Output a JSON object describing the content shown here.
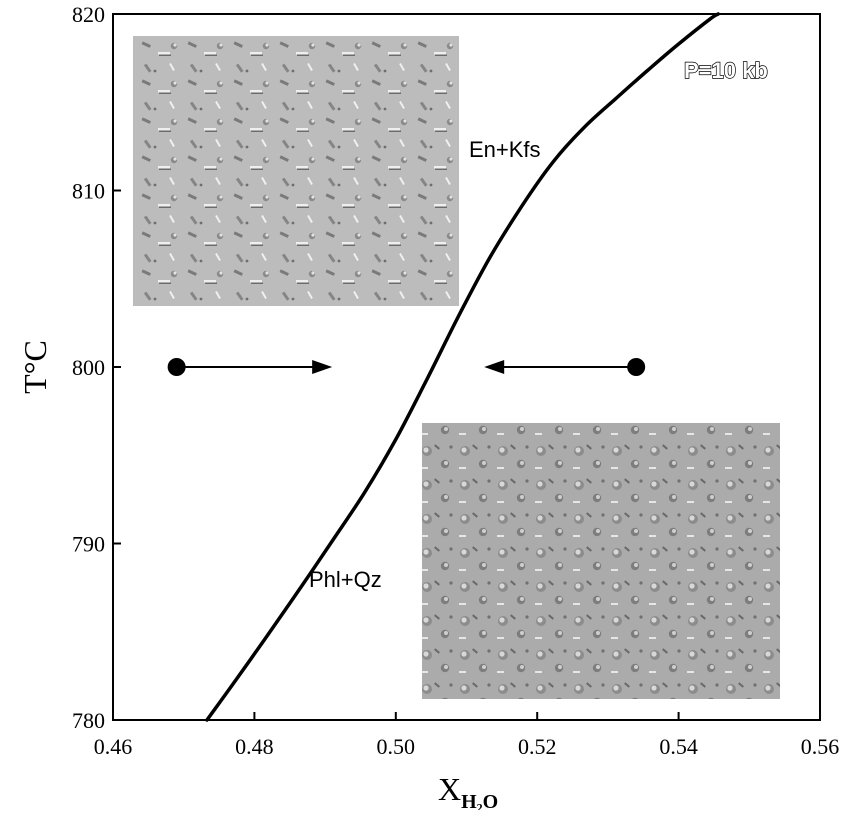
{
  "chart_data": {
    "type": "line",
    "title": "",
    "xlabel": {
      "main": "X",
      "sub": "H₂O"
    },
    "ylabel": "T°C",
    "xlim": [
      0.46,
      0.56
    ],
    "ylim": [
      780,
      820
    ],
    "x_ticks": [
      {
        "value": 0.46,
        "label": "0.46"
      },
      {
        "value": 0.48,
        "label": "0.48"
      },
      {
        "value": 0.5,
        "label": "0.50"
      },
      {
        "value": 0.52,
        "label": "0.52"
      },
      {
        "value": 0.54,
        "label": "0.54"
      },
      {
        "value": 0.56,
        "label": "0.56"
      }
    ],
    "y_ticks": [
      {
        "value": 780,
        "label": "780"
      },
      {
        "value": 790,
        "label": "790"
      },
      {
        "value": 800,
        "label": "800"
      },
      {
        "value": 810,
        "label": "810"
      },
      {
        "value": 820,
        "label": "820"
      }
    ],
    "grid": false,
    "series": [
      {
        "x": [
          0.4733,
          0.4778,
          0.4822,
          0.4867,
          0.4911,
          0.4956,
          0.5,
          0.5044,
          0.5089,
          0.5133,
          0.5178,
          0.5222,
          0.5267,
          0.5311,
          0.5356,
          0.54,
          0.5444,
          0.5456
        ],
        "y": [
          780.0,
          782.5,
          785.0,
          787.6,
          790.2,
          792.9,
          795.9,
          799.3,
          802.9,
          806.2,
          809.1,
          811.6,
          813.6,
          815.2,
          816.8,
          818.3,
          819.7,
          820.0
        ]
      }
    ],
    "annotations": {
      "pressure": "P=10 kb",
      "upper_field": "En+Kfs",
      "lower_field": "Phl+Qz"
    },
    "arrows": [
      {
        "from": [
          0.469,
          800
        ],
        "to": [
          0.491,
          800
        ]
      },
      {
        "from": [
          0.534,
          800
        ],
        "to": [
          0.5125,
          800
        ]
      }
    ]
  }
}
